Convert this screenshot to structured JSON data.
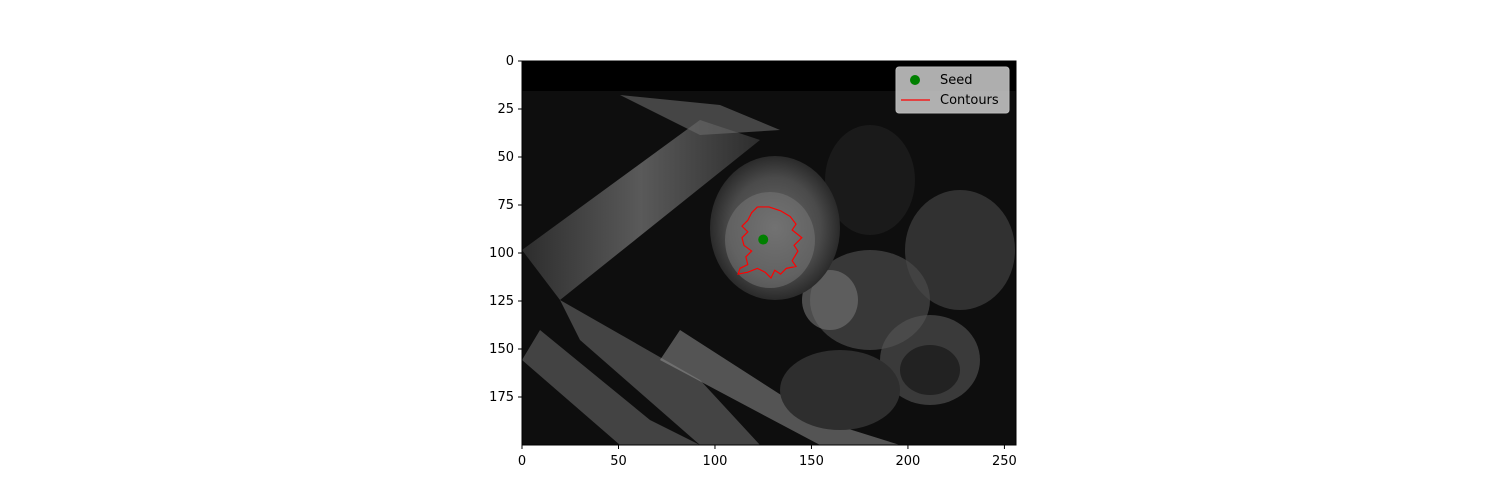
{
  "chart_data": {
    "type": "scatter",
    "title": "",
    "xlabel": "",
    "ylabel": "",
    "xlim": [
      0,
      256
    ],
    "ylim": [
      200,
      0
    ],
    "x_ticks": [
      0,
      50,
      100,
      150,
      200,
      250
    ],
    "y_ticks": [
      0,
      25,
      50,
      75,
      100,
      125,
      150,
      175
    ],
    "grid": false,
    "legend_placement": "top-right",
    "series": [
      {
        "name": "Seed",
        "kind": "scatter",
        "color": "#008000",
        "points": [
          {
            "x": 125,
            "y": 93
          }
        ]
      },
      {
        "name": "Contours",
        "kind": "line",
        "color": "#ff0000",
        "points": [
          {
            "x": 122,
            "y": 76
          },
          {
            "x": 128,
            "y": 76
          },
          {
            "x": 134,
            "y": 78
          },
          {
            "x": 139,
            "y": 81
          },
          {
            "x": 142,
            "y": 85
          },
          {
            "x": 140,
            "y": 88
          },
          {
            "x": 145,
            "y": 92
          },
          {
            "x": 141,
            "y": 96
          },
          {
            "x": 143,
            "y": 99
          },
          {
            "x": 140,
            "y": 104
          },
          {
            "x": 142,
            "y": 107
          },
          {
            "x": 137,
            "y": 108
          },
          {
            "x": 134,
            "y": 111
          },
          {
            "x": 131,
            "y": 109
          },
          {
            "x": 129,
            "y": 113
          },
          {
            "x": 126,
            "y": 110
          },
          {
            "x": 122,
            "y": 108
          },
          {
            "x": 117,
            "y": 110
          },
          {
            "x": 112,
            "y": 111
          },
          {
            "x": 113,
            "y": 108
          },
          {
            "x": 117,
            "y": 106
          },
          {
            "x": 116,
            "y": 102
          },
          {
            "x": 119,
            "y": 99
          },
          {
            "x": 115,
            "y": 96
          },
          {
            "x": 114,
            "y": 92
          },
          {
            "x": 117,
            "y": 89
          },
          {
            "x": 114,
            "y": 86
          },
          {
            "x": 117,
            "y": 83
          },
          {
            "x": 119,
            "y": 79
          },
          {
            "x": 122,
            "y": 76
          }
        ]
      }
    ]
  }
}
